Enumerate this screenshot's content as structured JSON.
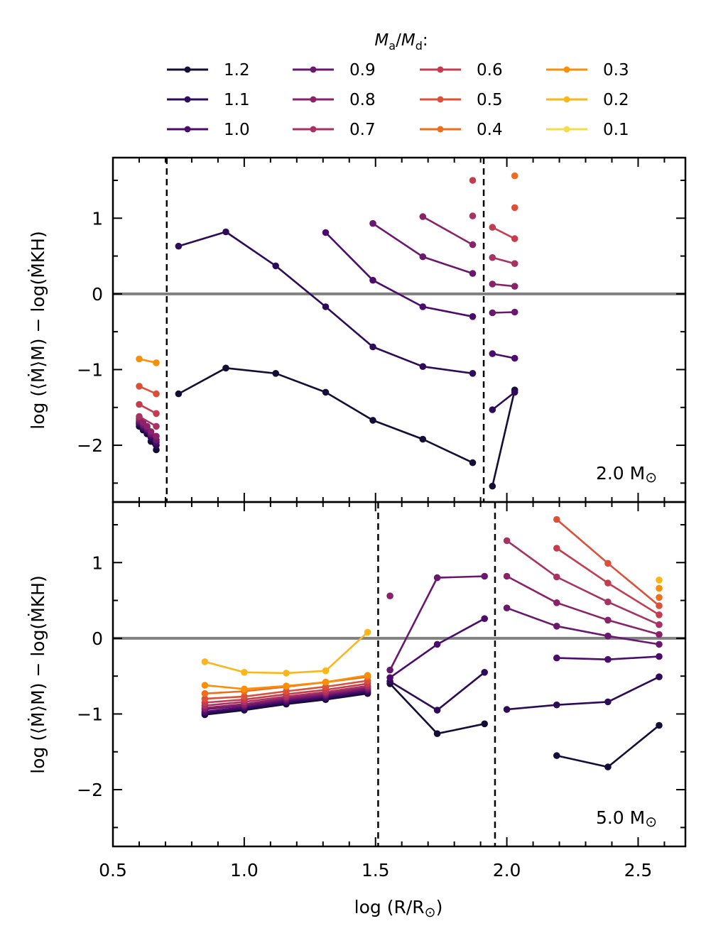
{
  "legend": {
    "title_num": "M",
    "title_num_sub": "a",
    "title_den": "M",
    "title_den_sub": "d",
    "title_suffix": ":",
    "entries": [
      {
        "label": "1.2",
        "color": "#140e36"
      },
      {
        "label": "1.1",
        "color": "#2d0b59"
      },
      {
        "label": "1.0",
        "color": "#4b0c6b"
      },
      {
        "label": "0.9",
        "color": "#6a176e"
      },
      {
        "label": "0.8",
        "color": "#8a226a"
      },
      {
        "label": "0.7",
        "color": "#a83263"
      },
      {
        "label": "0.6",
        "color": "#c43c4e"
      },
      {
        "label": "0.5",
        "color": "#dc5039"
      },
      {
        "label": "0.4",
        "color": "#ef6e1e"
      },
      {
        "label": "0.3",
        "color": "#f98e09"
      },
      {
        "label": "0.2",
        "color": "#fbb61a"
      },
      {
        "label": "0.1",
        "color": "#f3dd4b"
      }
    ]
  },
  "axes": {
    "xlabel": "log (R/R",
    "xlabel_sun": "⊙",
    "xlabel_close": ")",
    "ylabel": "log (⟨Ṁ⟩M) − log(ṀKH)",
    "x_ticks": [
      "0.5",
      "1.0",
      "1.5",
      "2.0",
      "2.5"
    ],
    "y_ticks": [
      "−2",
      "−1",
      "0",
      "1"
    ]
  },
  "chart_data": [
    {
      "type": "line",
      "panel_label": "2.0 M",
      "panel_label_sun": "⊙",
      "xlim": [
        0.5,
        2.68
      ],
      "ylim": [
        -2.75,
        1.8
      ],
      "x_ticks": [
        0.5,
        1.0,
        1.5,
        2.0,
        2.5
      ],
      "y_ticks": [
        -2,
        -1,
        0,
        1
      ],
      "hline": 0,
      "vlines": [
        0.705,
        1.912
      ],
      "series": [
        {
          "name": "1.2",
          "x": [
            0.6,
            0.615,
            0.63,
            0.645,
            0.665
          ],
          "y": [
            -1.75,
            -1.8,
            -1.85,
            -1.95,
            -2.06
          ]
        },
        {
          "name": "1.1",
          "x": [
            0.6,
            0.615,
            0.63,
            0.645,
            0.665
          ],
          "y": [
            -1.72,
            -1.77,
            -1.82,
            -1.9,
            -2.0
          ]
        },
        {
          "name": "1.0",
          "x": [
            0.6,
            0.615,
            0.63,
            0.645,
            0.665
          ],
          "y": [
            -1.7,
            -1.75,
            -1.8,
            -1.87,
            -1.96
          ]
        },
        {
          "name": "0.9",
          "x": [
            0.6,
            0.615,
            0.63,
            0.645,
            0.665
          ],
          "y": [
            -1.68,
            -1.73,
            -1.78,
            -1.85,
            -1.93
          ]
        },
        {
          "name": "0.8",
          "x": [
            0.6,
            0.615,
            0.63,
            0.645,
            0.665
          ],
          "y": [
            -1.65,
            -1.7,
            -1.75,
            -1.82,
            -1.88
          ]
        },
        {
          "name": "0.7",
          "x": [
            0.6,
            0.665
          ],
          "y": [
            -1.62,
            -1.75
          ]
        },
        {
          "name": "0.6",
          "x": [
            0.6,
            0.665
          ],
          "y": [
            -1.46,
            -1.58
          ]
        },
        {
          "name": "0.5",
          "x": [
            0.6,
            0.665
          ],
          "y": [
            -1.22,
            -1.32
          ]
        },
        {
          "name": "0.3",
          "x": [
            0.6,
            0.665
          ],
          "y": [
            -0.86,
            -0.91
          ]
        },
        {
          "name": "1.2",
          "x": [
            0.75,
            0.93,
            1.12,
            1.31,
            1.49,
            1.68,
            1.87
          ],
          "y": [
            -1.32,
            -0.98,
            -1.05,
            -1.3,
            -1.67,
            -1.92,
            -2.23
          ]
        },
        {
          "name": "1.1",
          "x": [
            0.75,
            0.93,
            1.12,
            1.31,
            1.49,
            1.68,
            1.87
          ],
          "y": [
            0.63,
            0.82,
            0.37,
            -0.17,
            -0.7,
            -0.96,
            -1.05
          ]
        },
        {
          "name": "1.0",
          "x": [
            1.31,
            1.49,
            1.68,
            1.87
          ],
          "y": [
            0.81,
            0.18,
            -0.17,
            -0.3
          ]
        },
        {
          "name": "0.9",
          "x": [
            1.49,
            1.68,
            1.87
          ],
          "y": [
            0.93,
            0.49,
            0.27
          ]
        },
        {
          "name": "0.8",
          "x": [
            1.68,
            1.87
          ],
          "y": [
            1.02,
            0.65
          ]
        },
        {
          "name": "0.7",
          "x": [
            1.87
          ],
          "y": [
            1.03
          ]
        },
        {
          "name": "0.6",
          "x": [
            1.87
          ],
          "y": [
            1.5
          ]
        },
        {
          "name": "1.2",
          "x": [
            1.945,
            2.03
          ],
          "y": [
            -2.54,
            -1.27
          ]
        },
        {
          "name": "1.1",
          "x": [
            1.945,
            2.03
          ],
          "y": [
            -1.53,
            -1.3
          ]
        },
        {
          "name": "1.0",
          "x": [
            1.945,
            2.03
          ],
          "y": [
            -0.79,
            -0.85
          ]
        },
        {
          "name": "0.9",
          "x": [
            1.945,
            2.03
          ],
          "y": [
            -0.25,
            -0.24
          ]
        },
        {
          "name": "0.8",
          "x": [
            1.945,
            2.03
          ],
          "y": [
            0.13,
            0.1
          ]
        },
        {
          "name": "0.7",
          "x": [
            1.945,
            2.03
          ],
          "y": [
            0.48,
            0.4
          ]
        },
        {
          "name": "0.6",
          "x": [
            1.945,
            2.03
          ],
          "y": [
            0.88,
            0.73
          ]
        },
        {
          "name": "0.5",
          "x": [
            2.03
          ],
          "y": [
            1.14
          ]
        },
        {
          "name": "0.4",
          "x": [
            2.03
          ],
          "y": [
            1.56
          ]
        }
      ]
    },
    {
      "type": "line",
      "panel_label": "5.0 M",
      "panel_label_sun": "⊙",
      "xlim": [
        0.5,
        2.68
      ],
      "ylim": [
        -2.75,
        1.8
      ],
      "x_ticks": [
        0.5,
        1.0,
        1.5,
        2.0,
        2.5
      ],
      "y_ticks": [
        -2,
        -1,
        0,
        1
      ],
      "hline": 0,
      "vlines": [
        1.51,
        1.955
      ],
      "series": [
        {
          "name": "1.2",
          "x": [
            0.85,
            1.0,
            1.16,
            1.31,
            1.47
          ],
          "y": [
            -1.01,
            -0.95,
            -0.87,
            -0.81,
            -0.73
          ]
        },
        {
          "name": "1.1",
          "x": [
            0.85,
            1.0,
            1.16,
            1.31,
            1.47
          ],
          "y": [
            -0.99,
            -0.93,
            -0.85,
            -0.79,
            -0.71
          ]
        },
        {
          "name": "1.0",
          "x": [
            0.85,
            1.0,
            1.16,
            1.31,
            1.47
          ],
          "y": [
            -0.97,
            -0.91,
            -0.83,
            -0.77,
            -0.69
          ]
        },
        {
          "name": "0.9",
          "x": [
            0.85,
            1.0,
            1.16,
            1.31,
            1.47
          ],
          "y": [
            -0.94,
            -0.89,
            -0.81,
            -0.75,
            -0.67
          ]
        },
        {
          "name": "0.8",
          "x": [
            0.85,
            1.0,
            1.16,
            1.31,
            1.47
          ],
          "y": [
            -0.92,
            -0.87,
            -0.79,
            -0.73,
            -0.65
          ]
        },
        {
          "name": "0.7",
          "x": [
            0.85,
            1.0,
            1.16,
            1.31,
            1.47
          ],
          "y": [
            -0.89,
            -0.84,
            -0.77,
            -0.71,
            -0.63
          ]
        },
        {
          "name": "0.6",
          "x": [
            0.85,
            1.0,
            1.16,
            1.31,
            1.47
          ],
          "y": [
            -0.85,
            -0.81,
            -0.74,
            -0.68,
            -0.6
          ]
        },
        {
          "name": "0.5",
          "x": [
            0.85,
            1.0,
            1.16,
            1.31,
            1.47
          ],
          "y": [
            -0.8,
            -0.77,
            -0.7,
            -0.64,
            -0.56
          ]
        },
        {
          "name": "0.4",
          "x": [
            0.85,
            1.0,
            1.16,
            1.31,
            1.47
          ],
          "y": [
            -0.73,
            -0.7,
            -0.64,
            -0.58,
            -0.51
          ]
        },
        {
          "name": "0.3",
          "x": [
            0.85,
            1.0,
            1.16,
            1.31,
            1.47
          ],
          "y": [
            -0.62,
            -0.67,
            -0.63,
            -0.58,
            -0.49
          ]
        },
        {
          "name": "0.2",
          "x": [
            0.85,
            1.0,
            1.16,
            1.31,
            1.47
          ],
          "y": [
            -0.31,
            -0.45,
            -0.46,
            -0.43,
            0.08
          ]
        },
        {
          "name": "1.2",
          "x": [
            1.555,
            1.735,
            1.915
          ],
          "y": [
            -0.6,
            -1.26,
            -1.13
          ]
        },
        {
          "name": "1.1",
          "x": [
            1.555,
            1.735,
            1.915
          ],
          "y": [
            -0.57,
            -0.95,
            -0.45
          ]
        },
        {
          "name": "1.0",
          "x": [
            1.555,
            1.735,
            1.915
          ],
          "y": [
            -0.52,
            -0.08,
            0.26
          ]
        },
        {
          "name": "0.9",
          "x": [
            1.555,
            1.735,
            1.915
          ],
          "y": [
            -0.42,
            0.8,
            0.82
          ]
        },
        {
          "name": "0.8",
          "x": [
            1.555
          ],
          "y": [
            0.56
          ]
        },
        {
          "name": "1.2",
          "x": [
            2.19,
            2.385,
            2.58
          ],
          "y": [
            -1.55,
            -1.7,
            -1.15
          ]
        },
        {
          "name": "1.1",
          "x": [
            2.0,
            2.19,
            2.385,
            2.58
          ],
          "y": [
            -0.94,
            -0.88,
            -0.84,
            -0.51
          ]
        },
        {
          "name": "1.0",
          "x": [
            2.19,
            2.385,
            2.58
          ],
          "y": [
            -0.26,
            -0.28,
            -0.24
          ]
        },
        {
          "name": "0.9",
          "x": [
            2.0,
            2.19,
            2.385,
            2.58
          ],
          "y": [
            0.4,
            0.16,
            0.03,
            -0.08
          ]
        },
        {
          "name": "0.8",
          "x": [
            2.0,
            2.19,
            2.385,
            2.58
          ],
          "y": [
            0.82,
            0.47,
            0.24,
            0.05
          ]
        },
        {
          "name": "0.7",
          "x": [
            2.0,
            2.19,
            2.385,
            2.58
          ],
          "y": [
            1.29,
            0.81,
            0.48,
            0.18
          ]
        },
        {
          "name": "0.6",
          "x": [
            2.19,
            2.385,
            2.58
          ],
          "y": [
            1.19,
            0.73,
            0.31
          ]
        },
        {
          "name": "0.5",
          "x": [
            2.19,
            2.385,
            2.58
          ],
          "y": [
            1.57,
            0.99,
            0.43
          ]
        },
        {
          "name": "0.4",
          "x": [
            2.58
          ],
          "y": [
            0.54
          ]
        },
        {
          "name": "0.3",
          "x": [
            2.58
          ],
          "y": [
            0.66
          ]
        },
        {
          "name": "0.2",
          "x": [
            2.58
          ],
          "y": [
            0.77
          ]
        }
      ]
    }
  ]
}
